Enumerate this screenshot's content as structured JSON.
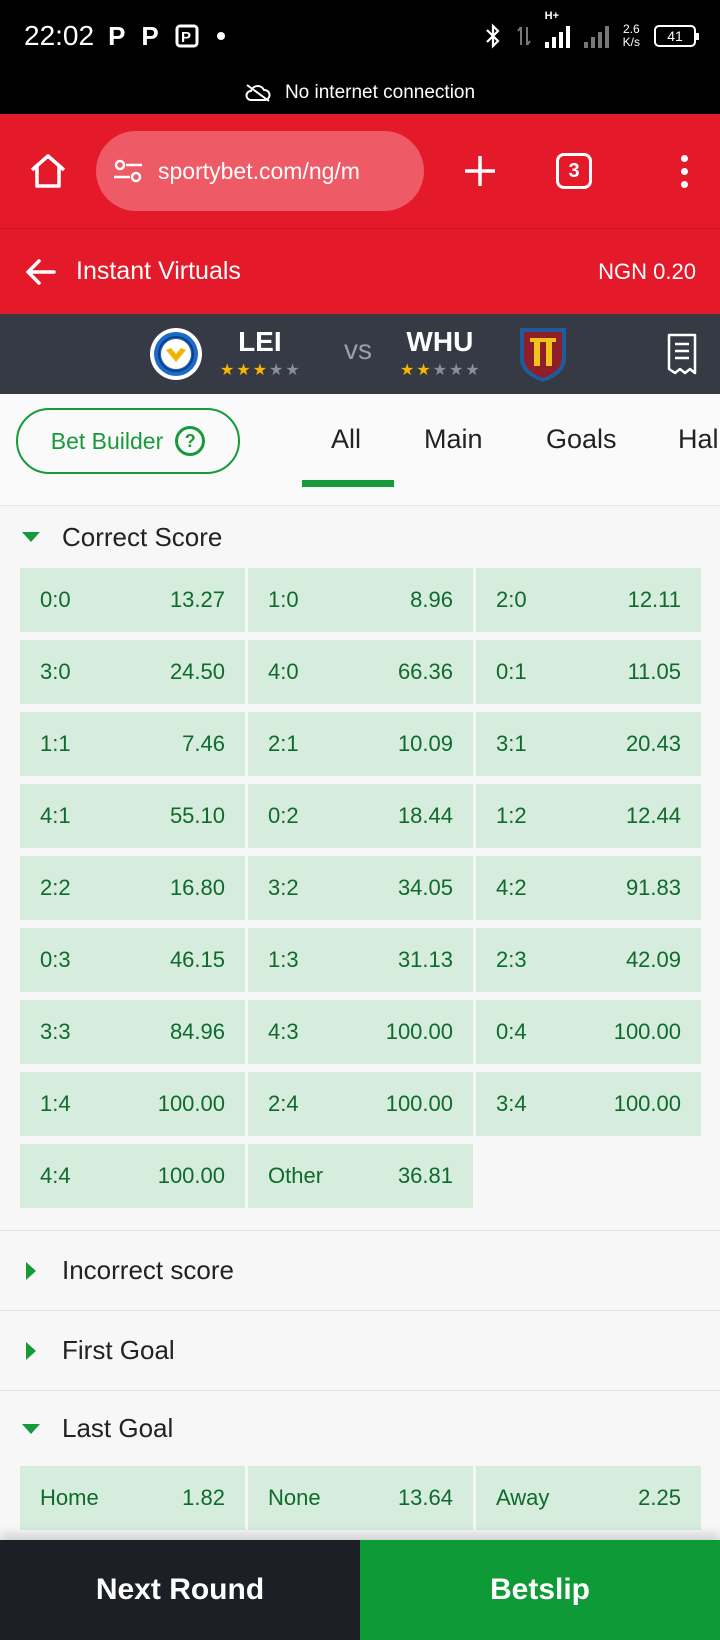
{
  "status_bar": {
    "time": "22:02",
    "left_icons": [
      "P",
      "P",
      "parking-icon",
      "dot"
    ],
    "speed_top": "2.6",
    "speed_bottom": "K/s",
    "network": "H+",
    "battery": "41"
  },
  "network_banner": {
    "text": "No internet connection"
  },
  "browser": {
    "url": "sportybet.com/ng/m",
    "tab_count": "3"
  },
  "header": {
    "title": "Instant Virtuals",
    "balance": "NGN 0.20"
  },
  "match": {
    "home": {
      "name": "LEI",
      "stars": 3
    },
    "vs": "vs",
    "away": {
      "name": "WHU",
      "stars": 2
    }
  },
  "filters": {
    "bet_builder": "Bet Builder",
    "help": "?",
    "tabs": [
      "All",
      "Main",
      "Goals",
      "Hal"
    ],
    "active_tab": "All"
  },
  "correct_score": {
    "title": "Correct Score",
    "cells": [
      {
        "label": "0:0",
        "odd": "13.27"
      },
      {
        "label": "1:0",
        "odd": "8.96"
      },
      {
        "label": "2:0",
        "odd": "12.11"
      },
      {
        "label": "3:0",
        "odd": "24.50"
      },
      {
        "label": "4:0",
        "odd": "66.36"
      },
      {
        "label": "0:1",
        "odd": "11.05"
      },
      {
        "label": "1:1",
        "odd": "7.46"
      },
      {
        "label": "2:1",
        "odd": "10.09"
      },
      {
        "label": "3:1",
        "odd": "20.43"
      },
      {
        "label": "4:1",
        "odd": "55.10"
      },
      {
        "label": "0:2",
        "odd": "18.44"
      },
      {
        "label": "1:2",
        "odd": "12.44"
      },
      {
        "label": "2:2",
        "odd": "16.80"
      },
      {
        "label": "3:2",
        "odd": "34.05"
      },
      {
        "label": "4:2",
        "odd": "91.83"
      },
      {
        "label": "0:3",
        "odd": "46.15"
      },
      {
        "label": "1:3",
        "odd": "31.13"
      },
      {
        "label": "2:3",
        "odd": "42.09"
      },
      {
        "label": "3:3",
        "odd": "84.96"
      },
      {
        "label": "4:3",
        "odd": "100.00"
      },
      {
        "label": "0:4",
        "odd": "100.00"
      },
      {
        "label": "1:4",
        "odd": "100.00"
      },
      {
        "label": "2:4",
        "odd": "100.00"
      },
      {
        "label": "3:4",
        "odd": "100.00"
      },
      {
        "label": "4:4",
        "odd": "100.00"
      },
      {
        "label": "Other",
        "odd": "36.81"
      }
    ]
  },
  "sections_collapsed": [
    "Incorrect score",
    "First Goal"
  ],
  "last_goal": {
    "title": "Last Goal",
    "cells": [
      {
        "label": "Home",
        "odd": "1.82"
      },
      {
        "label": "None",
        "odd": "13.64"
      },
      {
        "label": "Away",
        "odd": "2.25"
      }
    ]
  },
  "bottom": {
    "next_round": "Next Round",
    "betslip": "Betslip"
  },
  "colors": {
    "brand_red": "#e41a2b",
    "brand_green": "#179a3a",
    "odds_bg": "#d6ecdd",
    "match_bar": "#353a44"
  }
}
